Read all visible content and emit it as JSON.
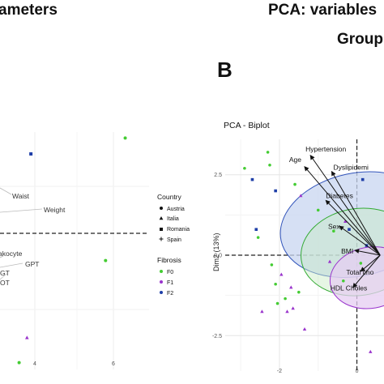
{
  "header": {
    "left_title_fragment": "ameters",
    "right_title_fragment": "PCA: variables",
    "right_subtitle_fragment": "Group",
    "panel_letter": "B"
  },
  "colors": {
    "F0": "#44cc33",
    "F1": "#9933cc",
    "F2": "#1f3fa8",
    "ellipse_blue_fill": "#c8d6f0",
    "ellipse_blue_stroke": "#3355bb",
    "ellipse_green_stroke": "#33aa33",
    "ellipse_purple_fill": "#e6cdf2",
    "ellipse_purple_stroke": "#9933cc"
  },
  "legend": {
    "country_title": "Country",
    "country_items": [
      "Austria",
      "Italia",
      "Romania",
      "Spain"
    ],
    "fibrosis_title": "Fibrosis",
    "fibrosis_items": [
      "F0",
      "F1",
      "F2"
    ]
  },
  "chart_data": [
    {
      "type": "scatter",
      "panel": "left (cropped)",
      "x_ticks": [
        "4",
        "6"
      ],
      "variable_labels": [
        "Waist",
        "Weight",
        "akocyte",
        "GPT",
        "GT",
        "OT"
      ],
      "points": [
        {
          "x": 6.3,
          "y": 2.1,
          "group": "F0"
        },
        {
          "x": 3.9,
          "y": 1.75,
          "group": "F2"
        },
        {
          "x": 5.8,
          "y": -0.6,
          "group": "F0"
        },
        {
          "x": 3.8,
          "y": -2.3,
          "group": "F1"
        },
        {
          "x": 3.6,
          "y": -2.85,
          "group": "F0"
        }
      ]
    },
    {
      "type": "scatter",
      "panel": "B",
      "title": "PCA - Biplot",
      "ylabel": "Dim2 (13%)",
      "x_ticks": [
        "-2",
        "0"
      ],
      "y_ticks": [
        "2.5",
        "0.0",
        "-2.5"
      ],
      "xlim": [
        -3.4,
        0.7
      ],
      "ylim": [
        -3.6,
        3.6
      ],
      "variables": [
        {
          "name": "Age",
          "x": -1.35,
          "y": 2.75
        },
        {
          "name": "Hypertension",
          "x": -1.2,
          "y": 3.1
        },
        {
          "name": "Dyslipidemi",
          "x": -0.65,
          "y": 2.6
        },
        {
          "name": "Diabetes",
          "x": -0.8,
          "y": 1.7
        },
        {
          "name": "Sex",
          "x": -0.45,
          "y": 0.9
        },
        {
          "name": "BMI",
          "x": -0.05,
          "y": 0.15
        },
        {
          "name": "Total cho",
          "x": 0.1,
          "y": -0.5
        },
        {
          "name": "HDL Choles",
          "x": -0.1,
          "y": -1.0
        }
      ],
      "points": [
        {
          "x": -2.9,
          "y": 2.7,
          "group": "F0"
        },
        {
          "x": -2.7,
          "y": 2.35,
          "group": "F2"
        },
        {
          "x": -2.3,
          "y": 3.2,
          "group": "F0"
        },
        {
          "x": -2.25,
          "y": 2.8,
          "group": "F0"
        },
        {
          "x": -2.6,
          "y": 0.8,
          "group": "F2"
        },
        {
          "x": -2.55,
          "y": 0.55,
          "group": "F0"
        },
        {
          "x": -2.1,
          "y": 2.0,
          "group": "F2"
        },
        {
          "x": -1.6,
          "y": 2.2,
          "group": "F0"
        },
        {
          "x": -1.45,
          "y": 1.85,
          "group": "F1"
        },
        {
          "x": -1.0,
          "y": 1.4,
          "group": "F0"
        },
        {
          "x": -0.6,
          "y": 0.75,
          "group": "F0"
        },
        {
          "x": -0.3,
          "y": 1.05,
          "group": "F1"
        },
        {
          "x": -0.2,
          "y": 0.8,
          "group": "F2"
        },
        {
          "x": -2.2,
          "y": -0.3,
          "group": "F0"
        },
        {
          "x": -1.95,
          "y": -0.6,
          "group": "F1"
        },
        {
          "x": -2.1,
          "y": -0.9,
          "group": "F0"
        },
        {
          "x": -1.85,
          "y": -1.35,
          "group": "F0"
        },
        {
          "x": -1.7,
          "y": -1.0,
          "group": "F1"
        },
        {
          "x": -1.65,
          "y": -1.65,
          "group": "F1"
        },
        {
          "x": -1.8,
          "y": -1.75,
          "group": "F1"
        },
        {
          "x": -2.05,
          "y": -1.5,
          "group": "F0"
        },
        {
          "x": -1.5,
          "y": -1.15,
          "group": "F0"
        },
        {
          "x": -1.35,
          "y": -2.3,
          "group": "F1"
        },
        {
          "x": -2.45,
          "y": -1.75,
          "group": "F1"
        },
        {
          "x": -0.7,
          "y": -0.2,
          "group": "F1"
        },
        {
          "x": -0.35,
          "y": -0.8,
          "group": "F0"
        },
        {
          "x": 0.1,
          "y": -0.25,
          "group": "F0"
        },
        {
          "x": 0.25,
          "y": 0.3,
          "group": "F2"
        },
        {
          "x": 0.15,
          "y": 2.35,
          "group": "F2"
        },
        {
          "x": 0.35,
          "y": -3.0,
          "group": "F1"
        }
      ]
    }
  ]
}
